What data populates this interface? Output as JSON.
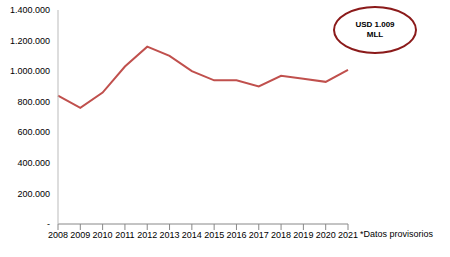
{
  "chart_data": {
    "type": "line",
    "categories": [
      "2008",
      "2009",
      "2010",
      "2011",
      "2012",
      "2013",
      "2014",
      "2015",
      "2016",
      "2017",
      "2018",
      "2019",
      "2020",
      "2021"
    ],
    "values": [
      840000,
      760000,
      860000,
      1030000,
      1160000,
      1100000,
      1000000,
      940000,
      940000,
      900000,
      970000,
      950000,
      930000,
      1009000
    ],
    "color": "#c0504d",
    "ylim": [
      0,
      1400000
    ],
    "yticks": [
      {
        "value": 0,
        "label": "-"
      },
      {
        "value": 200000,
        "label": "200.000"
      },
      {
        "value": 400000,
        "label": "400.000"
      },
      {
        "value": 600000,
        "label": "600.000"
      },
      {
        "value": 800000,
        "label": "800.000"
      },
      {
        "value": 1000000,
        "label": "1.000.000"
      },
      {
        "value": 1200000,
        "label": "1.200.000"
      },
      {
        "value": 1400000,
        "label": "1.400.000"
      }
    ],
    "grid": false,
    "annotation": "USD 1.009 MLL",
    "footnote": "*Datos provisorios"
  }
}
